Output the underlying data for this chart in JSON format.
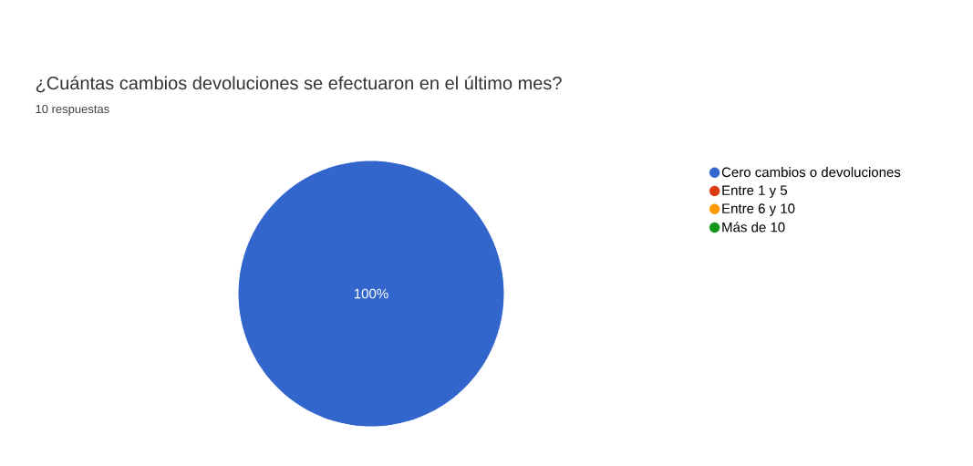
{
  "chart_data": {
    "type": "pie",
    "title": "¿Cuántas cambios devoluciones se efectuaron en el último mes?",
    "subtitle": "10 respuestas",
    "categories": [
      "Cero cambios o devoluciones",
      "Entre 1 y 5",
      "Entre 6 y 10",
      "Más de 10"
    ],
    "values": [
      100,
      0,
      0,
      0
    ],
    "colors": [
      "#3366cc",
      "#dc3912",
      "#ff9900",
      "#109618"
    ],
    "value_labels": [
      "100%",
      null,
      null,
      null
    ],
    "legend": "right"
  }
}
